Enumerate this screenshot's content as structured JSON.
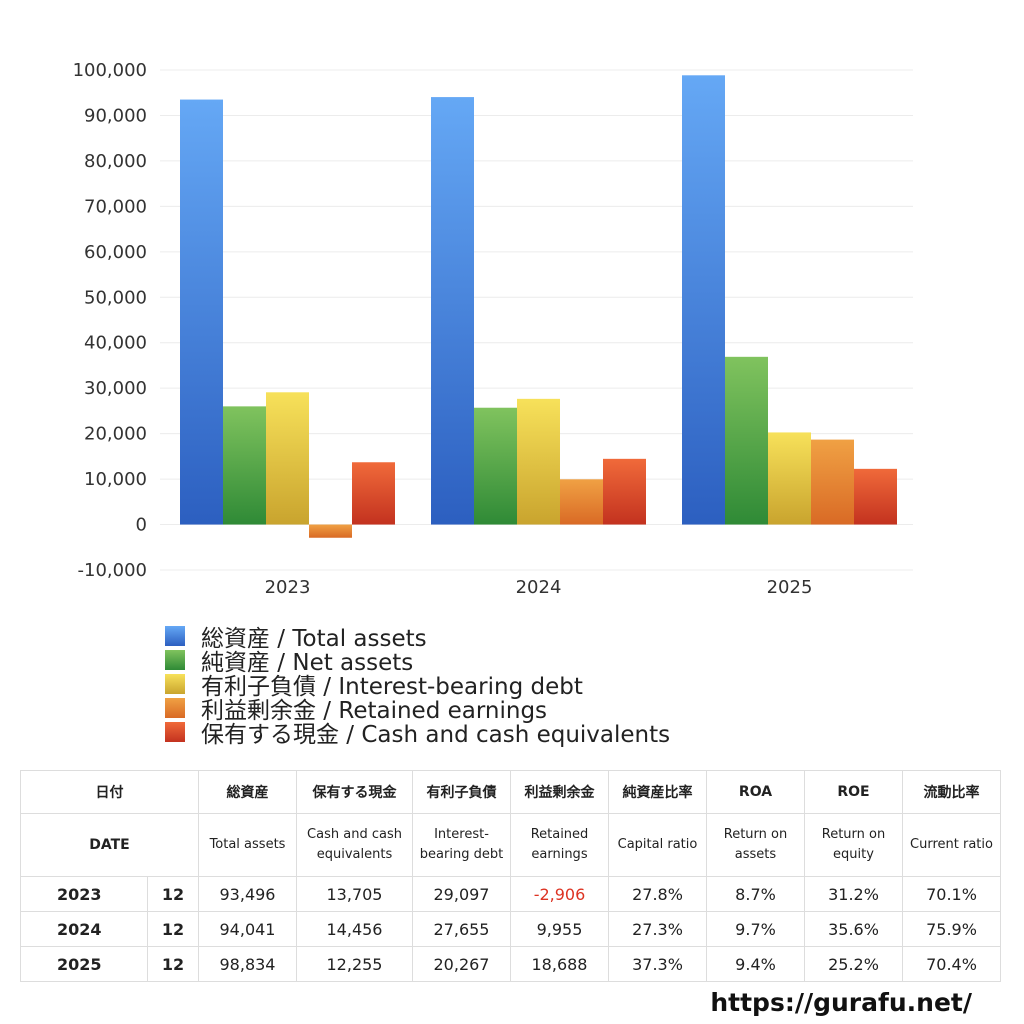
{
  "chart_data": {
    "type": "bar",
    "categories": [
      "2023",
      "2024",
      "2025"
    ],
    "ylim": [
      -10000,
      100000
    ],
    "yticks": [
      "100,000",
      "90,000",
      "80,000",
      "70,000",
      "60,000",
      "50,000",
      "40,000",
      "30,000",
      "20,000",
      "10,000",
      "0",
      "-10,000"
    ],
    "grid": true,
    "legend_position": "bottom-left",
    "series": [
      {
        "name": "総資産 / Total assets",
        "values": [
          93496,
          94041,
          98834
        ],
        "color_top": "#65a8f5",
        "color_bottom": "#2c5fc0"
      },
      {
        "name": "純資産 / Net assets",
        "values": [
          26000,
          25700,
          36900
        ],
        "color_top": "#80c35e",
        "color_bottom": "#2f8a36"
      },
      {
        "name": "有利子負債 / Interest-bearing debt",
        "values": [
          29097,
          27655,
          20267
        ],
        "color_top": "#f7e15a",
        "color_bottom": "#c9a42e"
      },
      {
        "name": "利益剰余金 / Retained earnings",
        "values": [
          -2906,
          9955,
          18688
        ],
        "color_top": "#f0a144",
        "color_bottom": "#d96a25"
      },
      {
        "name": "保有する現金 /  Cash and cash equivalents",
        "values": [
          13705,
          14456,
          12255
        ],
        "color_top": "#f06a3a",
        "color_bottom": "#c3321f"
      }
    ]
  },
  "table": {
    "header_jp": [
      "日付",
      "",
      "総資産",
      "保有する現金",
      "有利子負債",
      "利益剰余金",
      "純資産比率",
      "ROA",
      "ROE",
      "流動比率"
    ],
    "header_en": [
      "DATE",
      "",
      "Total assets",
      "Cash and cash equivalents",
      "Interest-bearing debt",
      "Retained earnings",
      "Capital ratio",
      "Return on assets",
      "Return on equity",
      "Current ratio"
    ],
    "rows": [
      [
        "2023",
        "12",
        "93,496",
        "13,705",
        "29,097",
        "-2,906",
        "27.8%",
        "8.7%",
        "31.2%",
        "70.1%"
      ],
      [
        "2024",
        "12",
        "94,041",
        "14,456",
        "27,655",
        "9,955",
        "27.3%",
        "9.7%",
        "35.6%",
        "75.9%"
      ],
      [
        "2025",
        "12",
        "98,834",
        "12,255",
        "20,267",
        "18,688",
        "37.3%",
        "9.4%",
        "25.2%",
        "70.4%"
      ]
    ]
  },
  "footer": {
    "url": "https://gurafu.net/"
  }
}
